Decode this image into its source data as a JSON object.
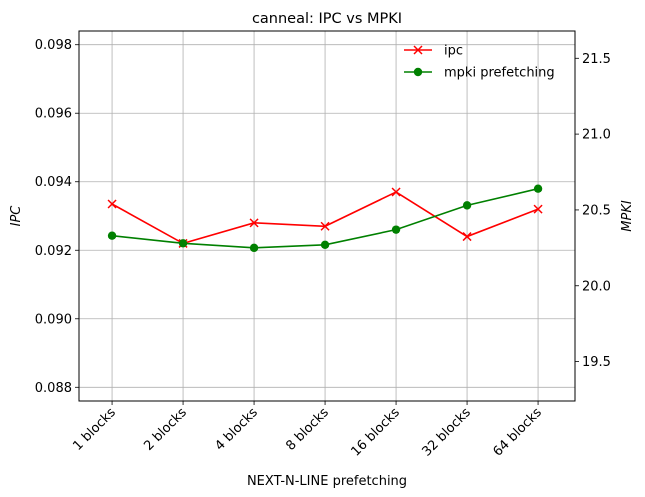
{
  "chart_data": {
    "type": "line",
    "title": "canneal: IPC vs MPKI",
    "xlabel": "NEXT-N-LINE prefetching",
    "ylabel_left": "IPC",
    "ylabel_right": "MPKI",
    "categories": [
      "1 blocks",
      "2 blocks",
      "4 blocks",
      "8 blocks",
      "16 blocks",
      "32 blocks",
      "64 blocks"
    ],
    "left_axis": {
      "ylim": [
        0.0876,
        0.0984
      ],
      "ticks": [
        0.088,
        0.09,
        0.092,
        0.094,
        0.096,
        0.098
      ],
      "tick_labels": [
        "0.088",
        "0.090",
        "0.092",
        "0.094",
        "0.096",
        "0.098"
      ]
    },
    "right_axis": {
      "ylim": [
        19.24,
        21.68
      ],
      "ticks": [
        19.5,
        20.0,
        20.5,
        21.0,
        21.5
      ],
      "tick_labels": [
        "19.5",
        "20.0",
        "20.5",
        "21.0",
        "21.5"
      ]
    },
    "grid": true,
    "legend_position": "top-right",
    "series": [
      {
        "name": "ipc",
        "axis": "left",
        "color": "#ff0000",
        "marker": "x",
        "values": [
          0.09335,
          0.0922,
          0.0928,
          0.0927,
          0.0937,
          0.0924,
          0.0932
        ]
      },
      {
        "name": "mpki prefetching",
        "axis": "right",
        "color": "#008000",
        "marker": "o",
        "values": [
          20.33,
          20.28,
          20.25,
          20.27,
          20.37,
          20.53,
          20.64
        ]
      }
    ]
  }
}
